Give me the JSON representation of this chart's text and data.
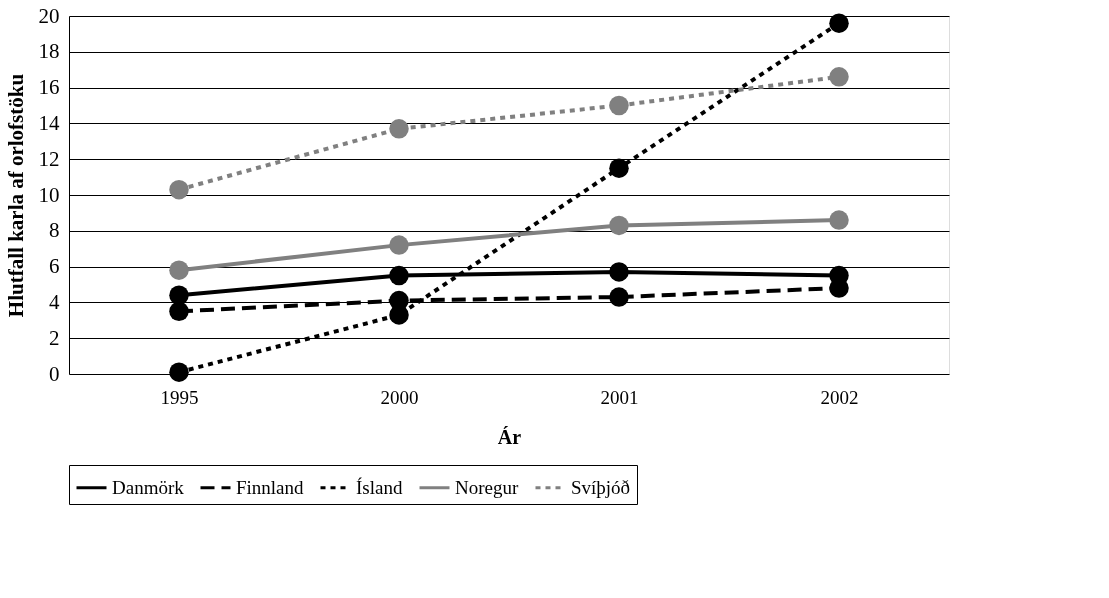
{
  "chart_data": {
    "type": "line",
    "xlabel": "Ár",
    "ylabel": "Hlutfall karla af orlofstöku",
    "categories": [
      "1995",
      "2000",
      "2001",
      "2002"
    ],
    "ylim": [
      0,
      20
    ],
    "yticks": [
      0,
      2,
      4,
      6,
      8,
      10,
      12,
      14,
      16,
      18,
      20
    ],
    "grid": "y",
    "legend": "bottom",
    "marker": "circle",
    "series": [
      {
        "name": "Danmörk",
        "color": "#000000",
        "line_style": "solid",
        "values": [
          4.4,
          5.5,
          5.7,
          5.5
        ]
      },
      {
        "name": "Finnland",
        "color": "#000000",
        "line_style": "dashed",
        "values": [
          3.5,
          4.1,
          4.3,
          4.8
        ]
      },
      {
        "name": "Ísland",
        "color": "#000000",
        "line_style": "dotted",
        "values": [
          0.1,
          3.3,
          11.5,
          19.6
        ]
      },
      {
        "name": "Noregur",
        "color": "#808080",
        "line_style": "solid",
        "values": [
          5.8,
          7.2,
          8.3,
          8.6
        ]
      },
      {
        "name": "Svíþjóð",
        "color": "#808080",
        "line_style": "dotted",
        "values": [
          10.3,
          13.7,
          15.0,
          16.6
        ]
      }
    ]
  }
}
